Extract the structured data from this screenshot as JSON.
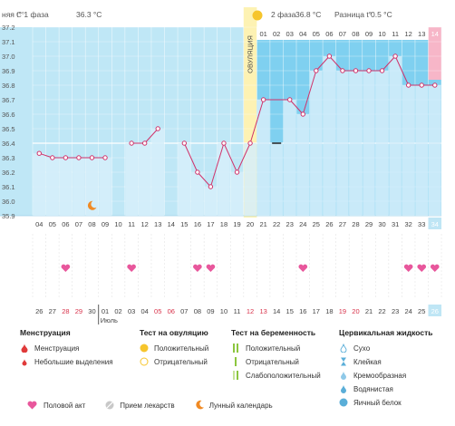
{
  "header": {
    "phase1": "няя t° 1 фаза",
    "phase1_temp": "36.3 °C",
    "phase2": "2 фаза",
    "phase2_temp": "36.8 °C",
    "difference": "Разница t°",
    "difference_value": "0.5 °C",
    "unit": "C°"
  },
  "ovulation_label": "ОВУЛЯЦИЯ",
  "colors": {
    "phase1_bg": "#bfe7f6",
    "phase2_bg": "#7fd0f0",
    "bar": "#d6eefa",
    "line": "#d0326a",
    "ovulation": "#fdf2b3",
    "last_day": "#f7b6c8",
    "heart": "#e8579c"
  },
  "chart_data": {
    "type": "line",
    "ylim": [
      35.9,
      37.2
    ],
    "yticks": [
      "37.2",
      "37.1",
      "37.0",
      "36.9",
      "36.8",
      "36.7",
      "36.6",
      "36.5",
      "36.4",
      "36.3",
      "36.2",
      "36.1",
      "36.0",
      "35.9"
    ],
    "cycle_days": [
      "04",
      "05",
      "06",
      "07",
      "08",
      "09",
      "10",
      "11",
      "12",
      "13",
      "14",
      "15",
      "16",
      "17",
      "18",
      "19",
      "20",
      "21",
      "22",
      "23",
      "24",
      "25",
      "26",
      "27",
      "28",
      "29",
      "30",
      "31",
      "32",
      "33",
      "34"
    ],
    "dates": [
      "26",
      "27",
      "28",
      "29",
      "30",
      "01",
      "02",
      "03",
      "04",
      "05",
      "06",
      "07",
      "08",
      "09",
      "10",
      "11",
      "12",
      "13",
      "14",
      "15",
      "16",
      "17",
      "18",
      "19",
      "20",
      "21",
      "22",
      "23",
      "24",
      "25",
      "26"
    ],
    "red_dates": [
      "28",
      "29",
      "05",
      "06",
      "12",
      "13",
      "19",
      "20"
    ],
    "month_label": "Июль",
    "phase2_days": [
      "01",
      "02",
      "03",
      "04",
      "05",
      "06",
      "07",
      "08",
      "09",
      "10",
      "11",
      "12",
      "13",
      "14"
    ],
    "temperatures": [
      36.33,
      36.3,
      36.3,
      36.3,
      36.3,
      36.3,
      null,
      36.4,
      36.4,
      36.5,
      null,
      36.4,
      36.2,
      36.1,
      36.4,
      36.2,
      36.4,
      36.7,
      36.4,
      36.7,
      36.6,
      36.9,
      37.0,
      36.9,
      36.9,
      36.9,
      36.9,
      37.0,
      36.8,
      36.8,
      36.8
    ],
    "excluded_day": "22",
    "coverline": 36.4,
    "ovulation_day": "20",
    "intercourse_days": [
      "06",
      "11",
      "16",
      "17",
      "24",
      "32",
      "33",
      "34"
    ],
    "lunar_day": "08"
  },
  "legend": {
    "menstruation": {
      "title": "Менструация",
      "items": [
        "Менструация",
        "Небольшие выделения"
      ]
    },
    "ovulation_test": {
      "title": "Тест на овуляцию",
      "items": [
        "Положительный",
        "Отрицательный"
      ]
    },
    "pregnancy_test": {
      "title": "Тест на беременность",
      "items": [
        "Положительный",
        "Отрицательный",
        "Слабоположительный"
      ]
    },
    "cervical": {
      "title": "Цервикальная жидкость",
      "items": [
        "Сухо",
        "Клейкая",
        "Кремообразная",
        "Водянистая",
        "Яичный белок"
      ]
    },
    "bottom": [
      "Половой акт",
      "Прием лекарств",
      "Лунный календарь"
    ]
  }
}
